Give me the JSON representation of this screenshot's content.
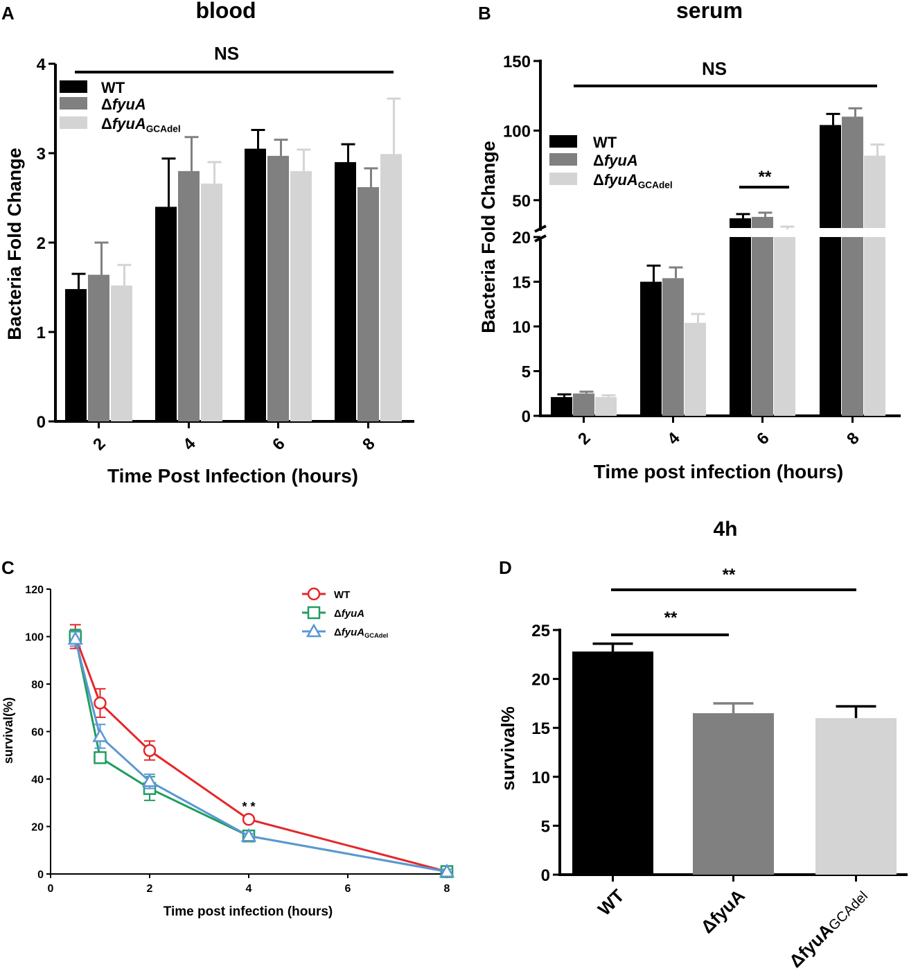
{
  "colors": {
    "wt": "#000000",
    "fyua": "#808080",
    "gcadel": "#d4d4d4",
    "line_wt": "#e5262a",
    "line_fyua": "#1e9e5e",
    "line_gcadel": "#5b97d4"
  },
  "chart_data": [
    {
      "panel": "A",
      "type": "bar",
      "title": "blood",
      "xlabel": "Time Post Infection (hours)",
      "ylabel": "Bacteria Fold Change",
      "categories": [
        "2",
        "4",
        "6",
        "8"
      ],
      "ylim": [
        0,
        4
      ],
      "yticks": [
        0,
        1,
        2,
        3,
        4
      ],
      "legend": [
        {
          "name": "WT",
          "name_italic": "",
          "sub": ""
        },
        {
          "name": "Δ",
          "name_italic": "fyuA",
          "sub": ""
        },
        {
          "name": "Δ",
          "name_italic": "fyuA",
          "sub": "GCAdel"
        }
      ],
      "series": [
        {
          "name": "WT",
          "values": [
            1.48,
            2.4,
            3.05,
            2.9
          ],
          "errors": [
            0.17,
            0.54,
            0.21,
            0.2
          ]
        },
        {
          "name": "ΔfyuA",
          "values": [
            1.64,
            2.8,
            2.97,
            2.62
          ],
          "errors": [
            0.36,
            0.38,
            0.18,
            0.21
          ]
        },
        {
          "name": "ΔfyuAGCAdel",
          "values": [
            1.52,
            2.66,
            2.8,
            2.99
          ],
          "errors": [
            0.23,
            0.24,
            0.24,
            0.62
          ]
        }
      ],
      "annotations": [
        {
          "text": "NS"
        }
      ]
    },
    {
      "panel": "B",
      "type": "bar",
      "title": "serum",
      "xlabel": "Time post infection (hours)",
      "ylabel": "Bacteria Fold Change",
      "categories": [
        "2",
        "4",
        "6",
        "8"
      ],
      "y_break": [
        20,
        30
      ],
      "yticks_lower": [
        0,
        5,
        10,
        15,
        20
      ],
      "yticks_upper": [
        50,
        100,
        150
      ],
      "legend": [
        {
          "name": "WT",
          "name_italic": "",
          "sub": ""
        },
        {
          "name": "Δ",
          "name_italic": "fyuA",
          "sub": ""
        },
        {
          "name": "Δ",
          "name_italic": "fyuA",
          "sub": "GCAdel"
        }
      ],
      "series": [
        {
          "name": "WT",
          "values": [
            2.1,
            15.0,
            37,
            104
          ],
          "errors": [
            0.3,
            1.8,
            3,
            8
          ]
        },
        {
          "name": "ΔfyuA",
          "values": [
            2.5,
            15.4,
            38,
            110
          ],
          "errors": [
            0.2,
            1.2,
            3,
            6
          ]
        },
        {
          "name": "ΔfyuAGCAdel",
          "values": [
            2.1,
            10.4,
            29,
            82
          ],
          "errors": [
            0.2,
            1.0,
            2,
            8
          ]
        }
      ],
      "annotations": [
        {
          "text": "NS"
        },
        {
          "text": "**"
        }
      ]
    },
    {
      "panel": "C",
      "type": "line",
      "title": "",
      "xlabel": "Time post infection (hours)",
      "ylabel": "survival(%)",
      "xlim": [
        0,
        8
      ],
      "ylim": [
        0,
        120
      ],
      "xticks": [
        0,
        2,
        4,
        6,
        8
      ],
      "yticks": [
        0,
        20,
        40,
        60,
        80,
        100,
        120
      ],
      "x": [
        0.5,
        1,
        2,
        4,
        8
      ],
      "legend": [
        {
          "name": "WT",
          "name_italic": "",
          "sub": ""
        },
        {
          "name": "Δ",
          "name_italic": "fyuA",
          "sub": ""
        },
        {
          "name": "Δ",
          "name_italic": "fyuA",
          "sub": "GCAdel"
        }
      ],
      "series": [
        {
          "name": "WT",
          "marker": "circle",
          "values": [
            100,
            72,
            52,
            23,
            1
          ],
          "errors": [
            5,
            6,
            4,
            1,
            1
          ]
        },
        {
          "name": "ΔfyuA",
          "marker": "square",
          "values": [
            100,
            49,
            36,
            16,
            1
          ],
          "errors": [
            3,
            2,
            5,
            1,
            1
          ]
        },
        {
          "name": "ΔfyuAGCAdel",
          "marker": "triangle",
          "values": [
            99,
            58,
            39,
            16,
            1
          ],
          "errors": [
            3,
            5,
            3,
            1,
            1
          ]
        }
      ],
      "annotations": [
        {
          "text": "* *"
        }
      ]
    },
    {
      "panel": "D",
      "type": "bar",
      "title": "4h",
      "xlabel": "",
      "ylabel": "survival%",
      "categories": [
        "WT",
        "ΔfyuA",
        "ΔfyuAGCAdel"
      ],
      "category_labels": [
        {
          "main": "WT",
          "sub": ""
        },
        {
          "main": "ΔfyuA",
          "sub": ""
        },
        {
          "main": "ΔfyuA",
          "sub": "GCAdel"
        }
      ],
      "ylim": [
        0,
        25
      ],
      "yticks": [
        0,
        5,
        10,
        15,
        20,
        25
      ],
      "values": [
        22.8,
        16.5,
        16.0
      ],
      "errors": [
        0.8,
        1.0,
        1.2
      ],
      "annotations": [
        {
          "text": "**"
        },
        {
          "text": "**"
        }
      ]
    }
  ]
}
